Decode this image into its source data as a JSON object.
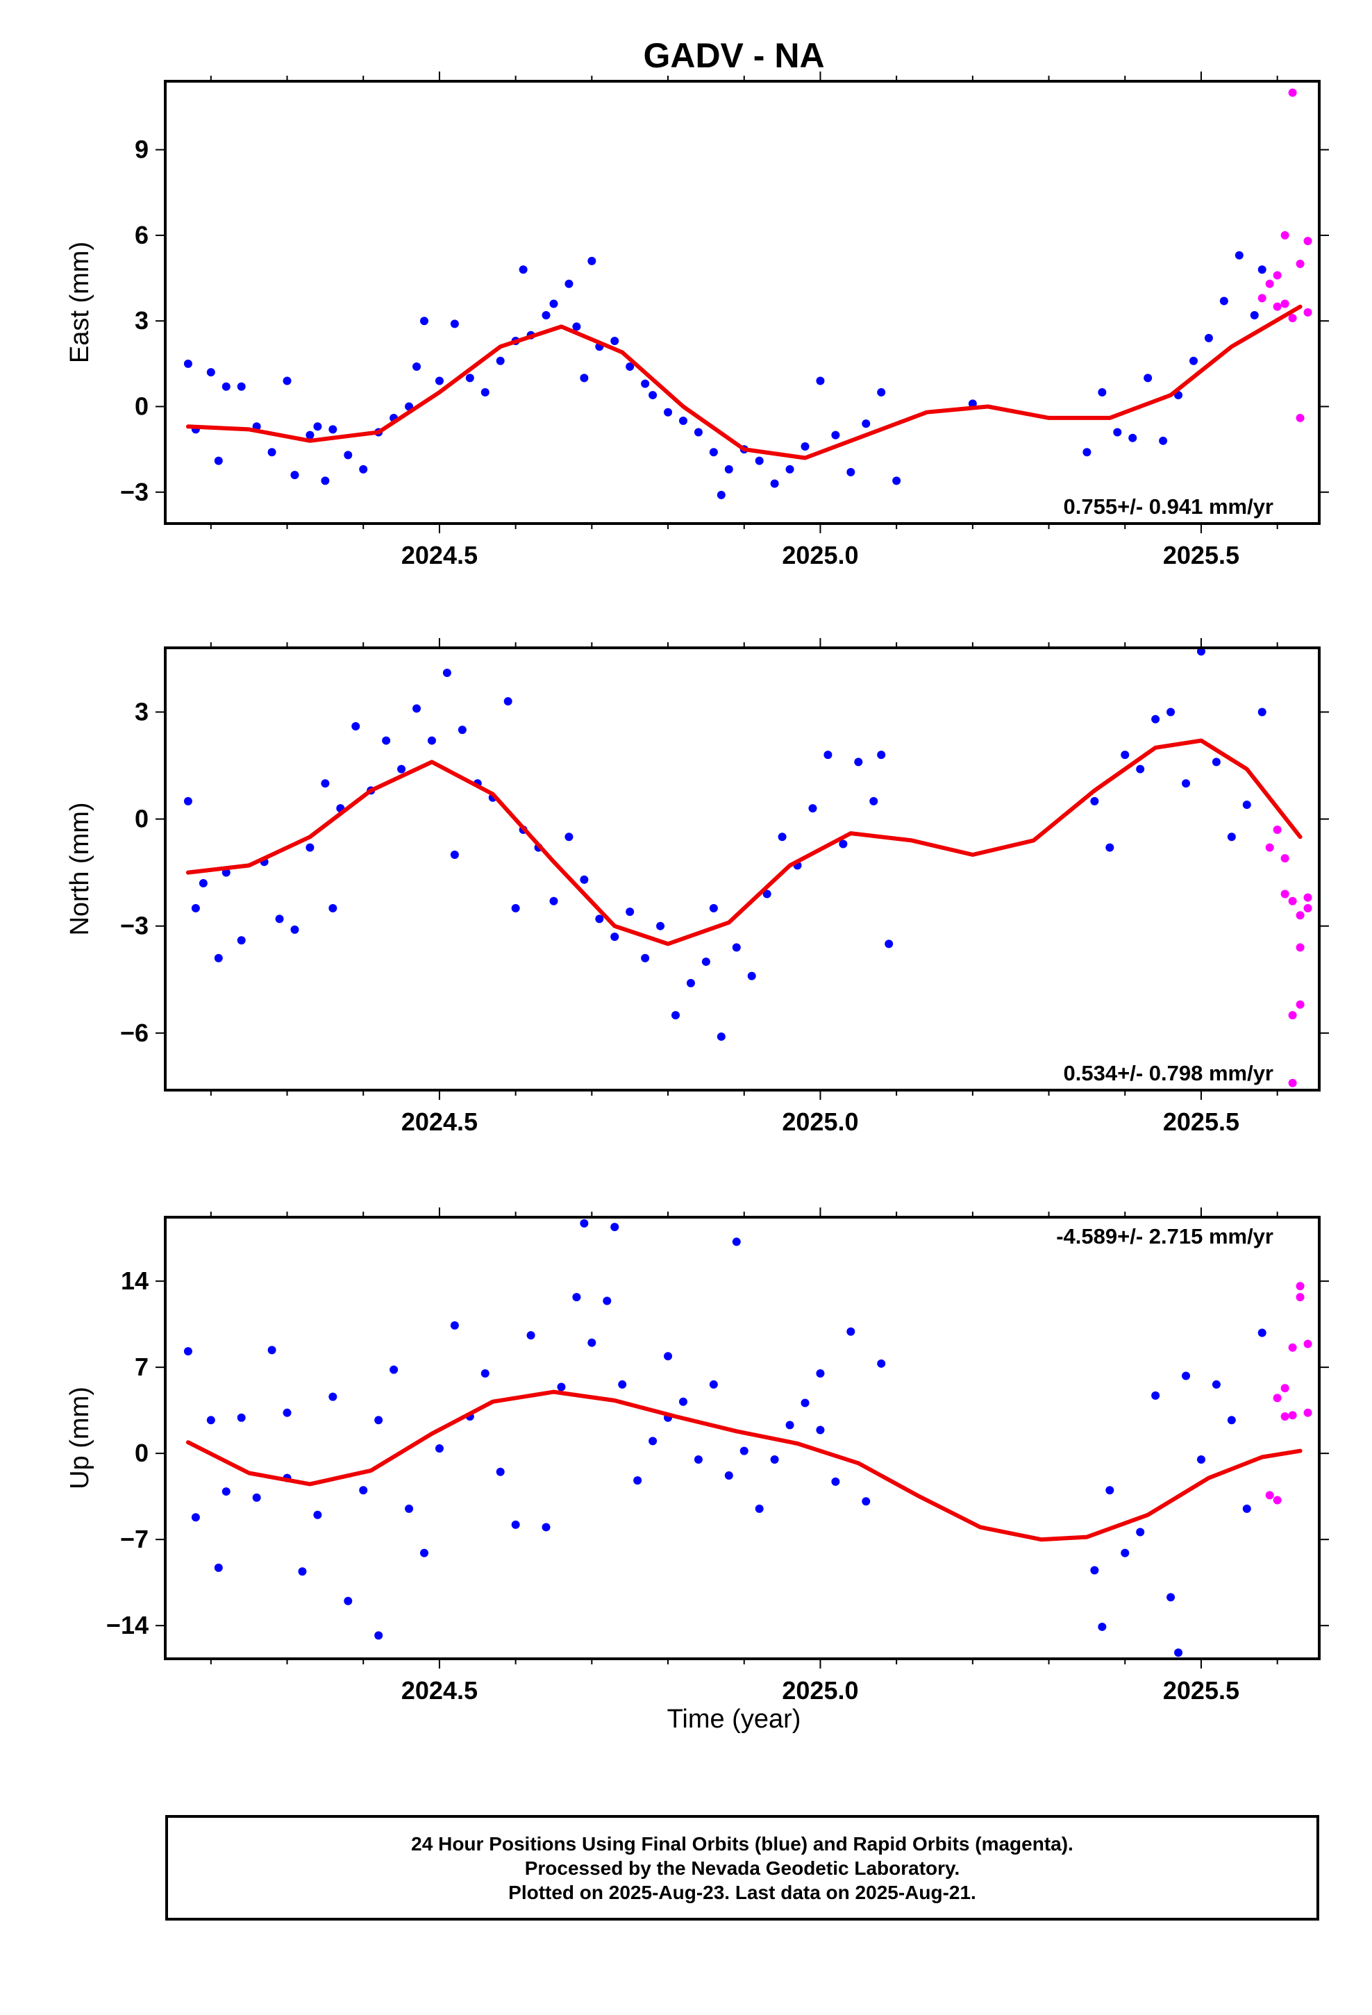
{
  "title": "GADV - NA",
  "xlabel": "Time (year)",
  "colors": {
    "final_orbit": "#0000ff",
    "rapid_orbit": "#ff00ff",
    "fit": "#ee0000",
    "frame": "#000000"
  },
  "footer": {
    "line1": "24 Hour Positions Using Final Orbits (blue) and Rapid Orbits (magenta).",
    "line2": "Processed by the Nevada Geodetic Laboratory.",
    "line3": "Plotted on 2025-Aug-23. Last data on 2025-Aug-21."
  },
  "chart_data": [
    {
      "type": "scatter",
      "ylabel": "East (mm)",
      "xlim": [
        2024.14,
        2025.655
      ],
      "ylim": [
        -4.1,
        11.4
      ],
      "xticks": [
        2024.5,
        2025.0,
        2025.5
      ],
      "xtick_labels": [
        "2024.5",
        "2025.0",
        "2025.5"
      ],
      "yticks": [
        -3,
        0,
        3,
        6,
        9
      ],
      "ytick_labels": [
        "−3",
        "0",
        "3",
        "6",
        "9"
      ],
      "rate": "0.755+/- 0.941 mm/yr",
      "rate_position": "bottom-right",
      "fit": {
        "x": [
          2024.17,
          2024.25,
          2024.33,
          2024.42,
          2024.5,
          2024.58,
          2024.66,
          2024.74,
          2024.82,
          2024.9,
          2024.98,
          2025.06,
          2025.14,
          2025.22,
          2025.3,
          2025.38,
          2025.46,
          2025.54,
          2025.63
        ],
        "y": [
          -0.7,
          -0.8,
          -1.2,
          -0.9,
          0.5,
          2.1,
          2.8,
          1.9,
          0.0,
          -1.5,
          -1.8,
          -1.0,
          -0.2,
          0.0,
          -0.4,
          -0.4,
          0.4,
          2.1,
          3.5
        ]
      },
      "series": [
        {
          "orbit": "final",
          "x": [
            2024.17,
            2024.18,
            2024.2,
            2024.21,
            2024.22,
            2024.24,
            2024.28,
            2024.3,
            2024.31,
            2024.33,
            2024.35,
            2024.36,
            2024.38,
            2024.4,
            2024.42,
            2024.44,
            2024.46,
            2024.47,
            2024.5,
            2024.52,
            2024.54,
            2024.56,
            2024.58,
            2024.6,
            2024.62,
            2024.64,
            2024.65,
            2024.67,
            2024.68,
            2024.7,
            2024.71,
            2024.73,
            2024.75,
            2024.77,
            2024.78,
            2024.8,
            2024.82,
            2024.84,
            2024.86,
            2024.88,
            2024.9,
            2024.92,
            2024.94,
            2024.96,
            2024.98,
            2025.0,
            2025.02,
            2025.04,
            2025.06,
            2025.08,
            2025.1,
            2025.35,
            2025.37,
            2025.39,
            2025.41,
            2025.43,
            2025.45,
            2025.47,
            2025.49,
            2025.51,
            2025.53,
            2025.55,
            2025.57,
            2025.58,
            2025.2,
            2024.26,
            2024.34,
            2024.48,
            2024.61,
            2024.69,
            2024.87
          ],
          "y": [
            1.5,
            -0.8,
            1.2,
            -1.9,
            0.7,
            0.7,
            -1.6,
            0.9,
            -2.4,
            -1.0,
            -2.6,
            -0.8,
            -1.7,
            -2.2,
            -0.9,
            -0.4,
            0.0,
            1.4,
            0.9,
            2.9,
            1.0,
            0.5,
            1.6,
            2.3,
            2.5,
            3.2,
            3.6,
            4.3,
            2.8,
            5.1,
            2.1,
            2.3,
            1.4,
            0.8,
            0.4,
            -0.2,
            -0.5,
            -0.9,
            -1.6,
            -2.2,
            -1.5,
            -1.9,
            -2.7,
            -2.2,
            -1.4,
            0.9,
            -1.0,
            -2.3,
            -0.6,
            0.5,
            -2.6,
            -1.6,
            0.5,
            -0.9,
            -1.1,
            1.0,
            -1.2,
            0.4,
            1.6,
            2.4,
            3.7,
            5.3,
            3.2,
            4.8,
            0.1,
            -0.7,
            -0.7,
            3.0,
            4.8,
            1.0,
            -3.1
          ]
        },
        {
          "orbit": "rapid",
          "x": [
            2025.59,
            2025.6,
            2025.61,
            2025.62,
            2025.63,
            2025.64,
            2025.6,
            2025.62,
            2025.61,
            2025.64,
            2025.63,
            2025.58
          ],
          "y": [
            4.3,
            4.6,
            6.0,
            11.0,
            5.0,
            5.8,
            3.5,
            3.1,
            3.6,
            3.3,
            -0.4,
            3.8
          ]
        }
      ]
    },
    {
      "type": "scatter",
      "ylabel": "North (mm)",
      "xlim": [
        2024.14,
        2025.655
      ],
      "ylim": [
        -7.6,
        4.8
      ],
      "xticks": [
        2024.5,
        2025.0,
        2025.5
      ],
      "xtick_labels": [
        "2024.5",
        "2025.0",
        "2025.5"
      ],
      "yticks": [
        -6,
        -3,
        0,
        3
      ],
      "ytick_labels": [
        "−6",
        "−3",
        "0",
        "3"
      ],
      "rate": "0.534+/- 0.798 mm/yr",
      "rate_position": "bottom-right",
      "fit": {
        "x": [
          2024.17,
          2024.25,
          2024.33,
          2024.41,
          2024.49,
          2024.57,
          2024.65,
          2024.73,
          2024.8,
          2024.88,
          2024.96,
          2025.04,
          2025.12,
          2025.2,
          2025.28,
          2025.36,
          2025.44,
          2025.5,
          2025.56,
          2025.63
        ],
        "y": [
          -1.5,
          -1.3,
          -0.5,
          0.8,
          1.6,
          0.7,
          -1.2,
          -3.0,
          -3.5,
          -2.9,
          -1.3,
          -0.4,
          -0.6,
          -1.0,
          -0.6,
          0.8,
          2.0,
          2.2,
          1.4,
          -0.5
        ]
      },
      "series": [
        {
          "orbit": "final",
          "x": [
            2024.17,
            2024.18,
            2024.19,
            2024.21,
            2024.22,
            2024.24,
            2024.27,
            2024.29,
            2024.31,
            2024.33,
            2024.35,
            2024.37,
            2024.39,
            2024.41,
            2024.43,
            2024.45,
            2024.47,
            2024.49,
            2024.51,
            2024.53,
            2024.55,
            2024.57,
            2024.59,
            2024.61,
            2024.63,
            2024.65,
            2024.67,
            2024.69,
            2024.71,
            2024.73,
            2024.75,
            2024.77,
            2024.79,
            2024.81,
            2024.83,
            2024.85,
            2024.87,
            2024.89,
            2024.91,
            2024.93,
            2024.95,
            2024.97,
            2024.99,
            2025.01,
            2025.03,
            2025.05,
            2025.07,
            2025.09,
            2025.36,
            2025.38,
            2025.4,
            2025.42,
            2025.44,
            2025.46,
            2025.48,
            2025.5,
            2025.52,
            2025.54,
            2025.56,
            2025.58,
            2024.36,
            2024.52,
            2024.6,
            2024.86,
            2025.08
          ],
          "y": [
            0.5,
            -2.5,
            -1.8,
            -3.9,
            -1.5,
            -3.4,
            -1.2,
            -2.8,
            -3.1,
            -0.8,
            1.0,
            0.3,
            2.6,
            0.8,
            2.2,
            1.4,
            3.1,
            2.2,
            4.1,
            2.5,
            1.0,
            0.6,
            3.3,
            -0.3,
            -0.8,
            -2.3,
            -0.5,
            -1.7,
            -2.8,
            -3.3,
            -2.6,
            -3.9,
            -3.0,
            -5.5,
            -4.6,
            -4.0,
            -6.1,
            -3.6,
            -4.4,
            -2.1,
            -0.5,
            -1.3,
            0.3,
            1.8,
            -0.7,
            1.6,
            0.5,
            -3.5,
            0.5,
            -0.8,
            1.8,
            1.4,
            2.8,
            3.0,
            1.0,
            4.7,
            1.6,
            -0.5,
            0.4,
            3.0,
            -2.5,
            -1.0,
            -2.5,
            -2.5,
            1.8
          ]
        },
        {
          "orbit": "rapid",
          "x": [
            2025.59,
            2025.6,
            2025.61,
            2025.62,
            2025.63,
            2025.64,
            2025.61,
            2025.63,
            2025.62,
            2025.64,
            2025.63,
            2025.62
          ],
          "y": [
            -0.8,
            -0.3,
            -1.1,
            -2.3,
            -3.6,
            -2.2,
            -2.1,
            -5.2,
            -5.5,
            -2.5,
            -2.7,
            -7.4
          ]
        }
      ]
    },
    {
      "type": "scatter",
      "ylabel": "Up (mm)",
      "xlim": [
        2024.14,
        2025.655
      ],
      "ylim": [
        -16.7,
        19.2
      ],
      "xticks": [
        2024.5,
        2025.0,
        2025.5
      ],
      "xtick_labels": [
        "2024.5",
        "2025.0",
        "2025.5"
      ],
      "yticks": [
        -14,
        -7,
        0,
        7,
        14
      ],
      "ytick_labels": [
        "−14",
        "−7",
        "0",
        "7",
        "14"
      ],
      "rate": "-4.589+/- 2.715 mm/yr",
      "rate_position": "top-right",
      "fit": {
        "x": [
          2024.17,
          2024.25,
          2024.33,
          2024.41,
          2024.49,
          2024.57,
          2024.65,
          2024.73,
          2024.81,
          2024.89,
          2024.97,
          2025.05,
          2025.13,
          2025.21,
          2025.29,
          2025.35,
          2025.43,
          2025.51,
          2025.58,
          2025.63
        ],
        "y": [
          0.9,
          -1.6,
          -2.5,
          -1.4,
          1.6,
          4.2,
          5.0,
          4.3,
          3.0,
          1.8,
          0.8,
          -0.8,
          -3.5,
          -6.0,
          -7.0,
          -6.8,
          -5.0,
          -2.0,
          -0.3,
          0.2
        ]
      },
      "series": [
        {
          "orbit": "final",
          "x": [
            2024.17,
            2024.18,
            2024.2,
            2024.21,
            2024.22,
            2024.24,
            2024.28,
            2024.3,
            2024.32,
            2024.34,
            2024.36,
            2024.38,
            2024.4,
            2024.42,
            2024.44,
            2024.46,
            2024.48,
            2024.5,
            2024.52,
            2024.54,
            2024.56,
            2024.58,
            2024.6,
            2024.62,
            2024.64,
            2024.66,
            2024.68,
            2024.7,
            2024.72,
            2024.74,
            2024.76,
            2024.78,
            2024.8,
            2024.82,
            2024.84,
            2024.86,
            2024.88,
            2024.9,
            2024.92,
            2024.94,
            2024.96,
            2024.98,
            2025.0,
            2025.02,
            2025.04,
            2025.06,
            2025.08,
            2025.36,
            2025.37,
            2025.38,
            2025.4,
            2025.42,
            2025.44,
            2025.46,
            2025.48,
            2025.5,
            2025.52,
            2025.54,
            2025.56,
            2025.58,
            2024.69,
            2024.73,
            2024.89,
            2024.42,
            2025.47,
            2024.3,
            2024.26,
            2024.8,
            2025.0
          ],
          "y": [
            8.3,
            -5.2,
            2.7,
            -9.3,
            -3.1,
            2.9,
            8.4,
            -2.0,
            -9.6,
            -5.0,
            4.6,
            -12.0,
            -3.0,
            2.7,
            6.8,
            -4.5,
            -8.1,
            0.4,
            10.4,
            3.0,
            6.5,
            -1.5,
            -5.8,
            9.6,
            -6.0,
            5.4,
            12.7,
            9.0,
            12.4,
            5.6,
            -2.2,
            1.0,
            7.9,
            4.2,
            -0.5,
            5.6,
            -1.8,
            0.2,
            -4.5,
            -0.5,
            2.3,
            4.1,
            6.5,
            -2.3,
            9.9,
            -3.9,
            7.3,
            -9.5,
            -14.1,
            -3.0,
            -8.1,
            -6.4,
            4.7,
            -11.7,
            6.3,
            -0.5,
            5.6,
            2.7,
            -4.5,
            9.8,
            18.7,
            18.4,
            17.2,
            -14.8,
            -16.2,
            3.3,
            -3.6,
            2.9,
            1.9
          ]
        },
        {
          "orbit": "rapid",
          "x": [
            2025.59,
            2025.6,
            2025.61,
            2025.62,
            2025.63,
            2025.64,
            2025.61,
            2025.63,
            2025.62,
            2025.6,
            2025.64
          ],
          "y": [
            -3.4,
            4.5,
            5.3,
            8.6,
            13.6,
            8.9,
            3.0,
            12.7,
            3.1,
            -3.8,
            3.3
          ]
        }
      ]
    }
  ]
}
